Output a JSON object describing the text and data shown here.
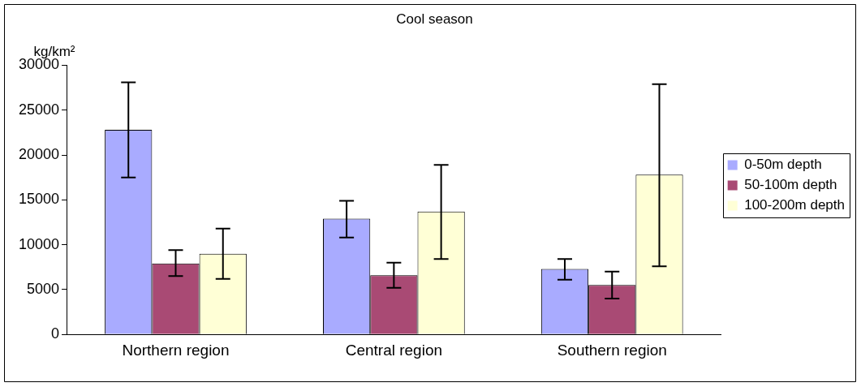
{
  "chart_data": {
    "type": "bar",
    "title": "Cool season",
    "ylabel": "kg/km²",
    "categories": [
      "Northern region",
      "Central region",
      "Southern region"
    ],
    "series": [
      {
        "name": "0-50m depth",
        "color": "#a9abff",
        "values": [
          22800,
          12900,
          7300
        ],
        "errors": [
          [
            17500,
            28100
          ],
          [
            10800,
            14900
          ],
          [
            6100,
            8400
          ]
        ]
      },
      {
        "name": "50-100m depth",
        "color": "#a94a74",
        "values": [
          7900,
          6600,
          5500
        ],
        "errors": [
          [
            6500,
            9400
          ],
          [
            5200,
            8000
          ],
          [
            4000,
            7000
          ]
        ]
      },
      {
        "name": "100-200m depth",
        "color": "#ffffd6",
        "values": [
          9000,
          13700,
          17800
        ],
        "errors": [
          [
            6200,
            11800
          ],
          [
            8400,
            18900
          ],
          [
            7600,
            27900
          ]
        ]
      }
    ],
    "ylim": [
      0,
      30000
    ],
    "yticks": [
      0,
      5000,
      10000,
      15000,
      20000,
      25000,
      30000
    ],
    "grid": false,
    "legend": "right"
  }
}
